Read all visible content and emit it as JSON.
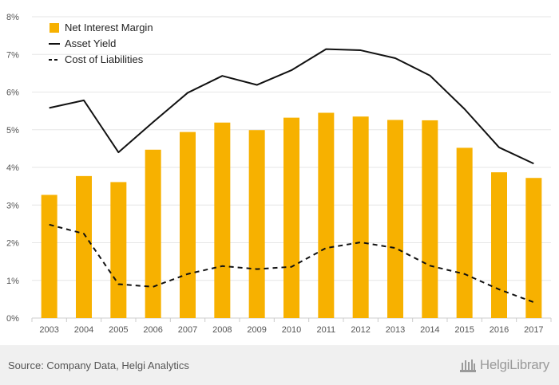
{
  "chart_data": {
    "type": "bar",
    "categories": [
      "2003",
      "2004",
      "2005",
      "2006",
      "2007",
      "2008",
      "2009",
      "2010",
      "2011",
      "2012",
      "2013",
      "2014",
      "2015",
      "2016",
      "2017"
    ],
    "series": [
      {
        "name": "Net Interest Margin",
        "kind": "bar",
        "color": "#f7b100",
        "values": [
          3.27,
          3.77,
          3.61,
          4.47,
          4.94,
          5.19,
          4.99,
          5.32,
          5.45,
          5.35,
          5.26,
          5.25,
          4.52,
          3.87,
          3.72
        ]
      },
      {
        "name": "Asset Yield",
        "kind": "line",
        "color": "#111111",
        "dash": "solid",
        "values": [
          5.58,
          5.78,
          4.4,
          5.2,
          5.98,
          6.43,
          6.19,
          6.58,
          7.14,
          7.11,
          6.9,
          6.44,
          5.55,
          4.53,
          4.1
        ]
      },
      {
        "name": "Cost of Liabilities",
        "kind": "line",
        "color": "#111111",
        "dash": "dashed",
        "values": [
          2.48,
          2.24,
          0.9,
          0.83,
          1.17,
          1.38,
          1.3,
          1.36,
          1.86,
          2.01,
          1.86,
          1.39,
          1.17,
          0.76,
          0.42
        ]
      }
    ],
    "y_ticks": [
      "0%",
      "1%",
      "2%",
      "3%",
      "4%",
      "5%",
      "6%",
      "7%",
      "8%"
    ],
    "ylim": [
      0,
      8
    ],
    "grid": true,
    "legend_position": "top-left"
  },
  "footer": {
    "source": "Source: Company Data, Helgi Analytics",
    "brand": "HelgiLibrary"
  },
  "colors": {
    "bar": "#f7b100",
    "line": "#111111",
    "grid": "#e6e6e6",
    "footer_bg": "#f0f0f0"
  }
}
